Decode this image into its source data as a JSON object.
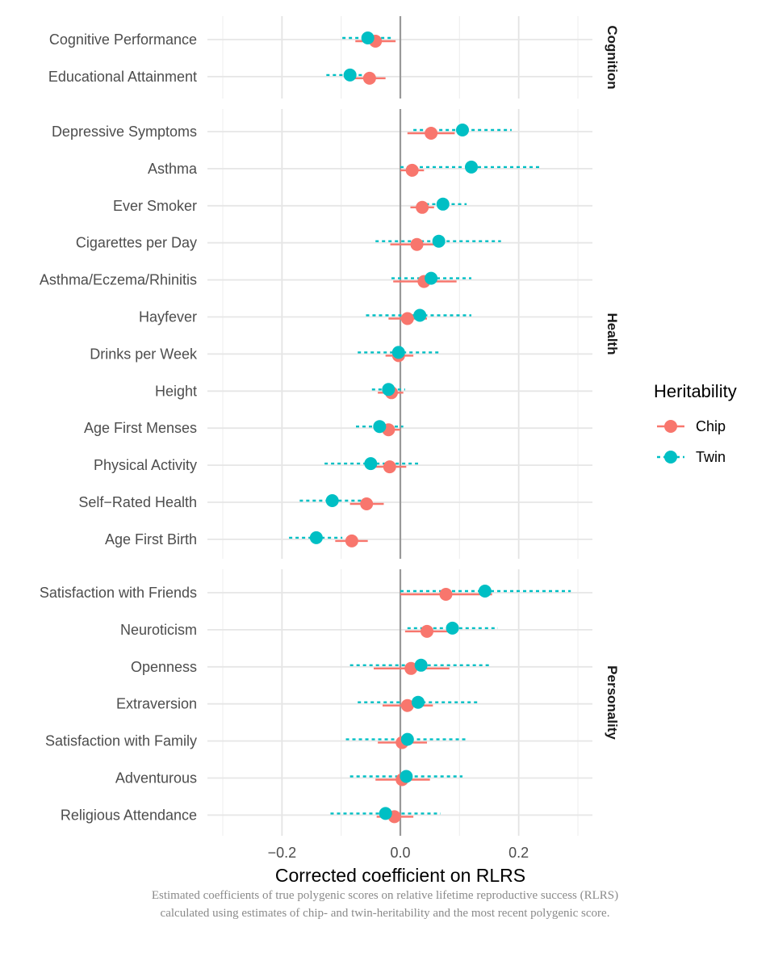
{
  "chart_data": {
    "type": "scatter",
    "xlabel": "Corrected coefficient on RLRS",
    "xlim": [
      -0.3,
      0.3
    ],
    "x_ticks": [
      -0.2,
      0.0,
      0.2
    ],
    "x_tick_labels": [
      "−0.2",
      "0.0",
      "0.2"
    ],
    "legend": {
      "title": "Heritability",
      "placement": "right",
      "entries": [
        {
          "label": "Chip",
          "color": "#F8766D"
        },
        {
          "label": "Twin",
          "color": "#00BFC4"
        }
      ]
    },
    "panels": [
      {
        "label": "Cognition",
        "traits": [
          {
            "label": "Cognitive Performance",
            "chip": {
              "est": -0.042,
              "lo": -0.076,
              "hi": -0.008
            },
            "twin": {
              "est": -0.055,
              "lo": -0.098,
              "hi": -0.012
            }
          },
          {
            "label": "Educational Attainment",
            "chip": {
              "est": -0.052,
              "lo": -0.082,
              "hi": -0.025
            },
            "twin": {
              "est": -0.085,
              "lo": -0.125,
              "hi": -0.055
            }
          }
        ]
      },
      {
        "label": "Health",
        "traits": [
          {
            "label": "Depressive Symptoms",
            "chip": {
              "est": 0.052,
              "lo": 0.012,
              "hi": 0.092
            },
            "twin": {
              "est": 0.105,
              "lo": 0.022,
              "hi": 0.188
            }
          },
          {
            "label": "Asthma",
            "chip": {
              "est": 0.02,
              "lo": 0.0,
              "hi": 0.04
            },
            "twin": {
              "est": 0.12,
              "lo": 0.0,
              "hi": 0.24
            }
          },
          {
            "label": "Ever Smoker",
            "chip": {
              "est": 0.037,
              "lo": 0.017,
              "hi": 0.057
            },
            "twin": {
              "est": 0.072,
              "lo": 0.032,
              "hi": 0.112
            }
          },
          {
            "label": "Cigarettes per Day",
            "chip": {
              "est": 0.028,
              "lo": -0.017,
              "hi": 0.072
            },
            "twin": {
              "est": 0.065,
              "lo": -0.042,
              "hi": 0.17
            }
          },
          {
            "label": "Asthma/Eczema/Rhinitis",
            "chip": {
              "est": 0.04,
              "lo": -0.012,
              "hi": 0.095
            },
            "twin": {
              "est": 0.052,
              "lo": -0.015,
              "hi": 0.12
            }
          },
          {
            "label": "Hayfever",
            "chip": {
              "est": 0.012,
              "lo": -0.02,
              "hi": 0.045
            },
            "twin": {
              "est": 0.033,
              "lo": -0.058,
              "hi": 0.12
            }
          },
          {
            "label": "Drinks per Week",
            "chip": {
              "est": -0.003,
              "lo": -0.025,
              "hi": 0.022
            },
            "twin": {
              "est": -0.003,
              "lo": -0.072,
              "hi": 0.065
            }
          },
          {
            "label": "Height",
            "chip": {
              "est": -0.015,
              "lo": -0.038,
              "hi": 0.005
            },
            "twin": {
              "est": -0.02,
              "lo": -0.048,
              "hi": 0.008
            }
          },
          {
            "label": "Age First Menses",
            "chip": {
              "est": -0.02,
              "lo": -0.04,
              "hi": 0.0
            },
            "twin": {
              "est": -0.035,
              "lo": -0.075,
              "hi": 0.005
            }
          },
          {
            "label": "Physical Activity",
            "chip": {
              "est": -0.018,
              "lo": -0.045,
              "hi": 0.01
            },
            "twin": {
              "est": -0.05,
              "lo": -0.128,
              "hi": 0.03
            }
          },
          {
            "label": "Self−Rated Health",
            "chip": {
              "est": -0.057,
              "lo": -0.085,
              "hi": -0.028
            },
            "twin": {
              "est": -0.115,
              "lo": -0.17,
              "hi": -0.062
            }
          },
          {
            "label": "Age First Birth",
            "chip": {
              "est": -0.082,
              "lo": -0.11,
              "hi": -0.055
            },
            "twin": {
              "est": -0.142,
              "lo": -0.188,
              "hi": -0.098
            }
          }
        ]
      },
      {
        "label": "Personality",
        "traits": [
          {
            "label": "Satisfaction with Friends",
            "chip": {
              "est": 0.077,
              "lo": 0.0,
              "hi": 0.155
            },
            "twin": {
              "est": 0.143,
              "lo": 0.0,
              "hi": 0.288
            }
          },
          {
            "label": "Neuroticism",
            "chip": {
              "est": 0.045,
              "lo": 0.008,
              "hi": 0.083
            },
            "twin": {
              "est": 0.088,
              "lo": 0.012,
              "hi": 0.165
            }
          },
          {
            "label": "Openness",
            "chip": {
              "est": 0.018,
              "lo": -0.045,
              "hi": 0.083
            },
            "twin": {
              "est": 0.035,
              "lo": -0.085,
              "hi": 0.155
            }
          },
          {
            "label": "Extraversion",
            "chip": {
              "est": 0.012,
              "lo": -0.03,
              "hi": 0.055
            },
            "twin": {
              "est": 0.03,
              "lo": -0.072,
              "hi": 0.132
            }
          },
          {
            "label": "Satisfaction with Family",
            "chip": {
              "est": 0.003,
              "lo": -0.038,
              "hi": 0.045
            },
            "twin": {
              "est": 0.012,
              "lo": -0.092,
              "hi": 0.112
            }
          },
          {
            "label": "Adventurous",
            "chip": {
              "est": 0.003,
              "lo": -0.042,
              "hi": 0.05
            },
            "twin": {
              "est": 0.01,
              "lo": -0.085,
              "hi": 0.105
            }
          },
          {
            "label": "Religious Attendance",
            "chip": {
              "est": -0.01,
              "lo": -0.04,
              "hi": 0.022
            },
            "twin": {
              "est": -0.025,
              "lo": -0.118,
              "hi": 0.068
            }
          }
        ]
      }
    ]
  },
  "caption": "Estimated coefficients of true polygenic scores on relative lifetime reproductive success (RLRS) calculated using estimates of chip- and twin-heritability and the most recent polygenic score."
}
